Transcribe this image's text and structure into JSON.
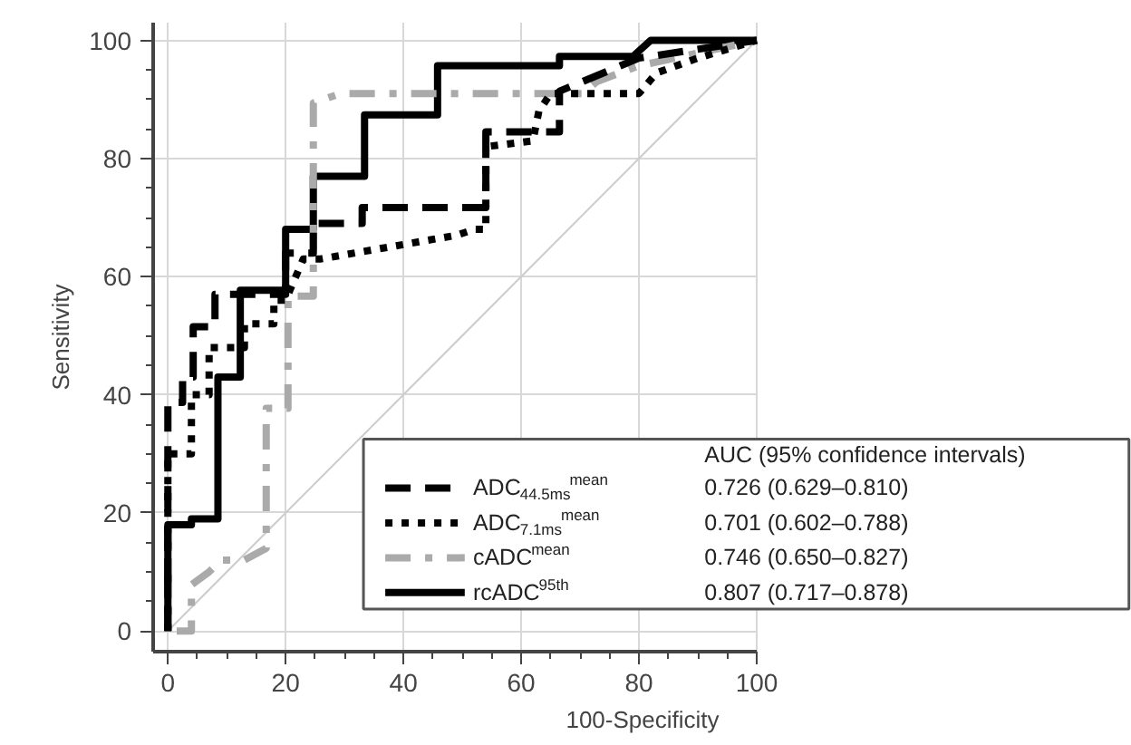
{
  "chart_data": {
    "type": "line",
    "xlabel": "100-Specificity",
    "ylabel": "Sensitivity",
    "xlim": [
      -2.5,
      100
    ],
    "ylim": [
      -3.5,
      103
    ],
    "xticks": [
      0,
      20,
      40,
      60,
      80,
      100
    ],
    "yticks": [
      0,
      20,
      40,
      60,
      80,
      100
    ],
    "grid": true,
    "legend": "bottom right",
    "annotations": [
      "AUC (95% confidence intervals)",
      "0.726 (0.629–0.810)",
      "0.701 (0.602–0.788)",
      "0.746 (0.650–0.827)",
      "0.807 (0.717–0.878)"
    ],
    "series": [
      {
        "name": "ADC$_{44.5ms}$$^{mean}$",
        "color": "#000000",
        "line_style": "dashed",
        "x": [
          0,
          0,
          2.5,
          2.5,
          4.3,
          4.3,
          8,
          8,
          20,
          20,
          24.7,
          24.7,
          33,
          33,
          54,
          54,
          66.5,
          66.5,
          80,
          100
        ],
        "values": [
          0,
          38.7,
          38.7,
          43,
          43,
          51.5,
          51.5,
          57,
          57,
          64,
          64,
          69,
          69,
          71.7,
          71.7,
          84.5,
          84.5,
          91.4,
          97,
          100
        ]
      },
      {
        "name": "ADC$_{7.1ms}$$^{mean}$",
        "color": "#000000",
        "line_style": "dotted",
        "x": [
          0,
          0,
          4,
          4,
          7,
          7,
          13,
          13,
          18,
          18,
          20,
          23,
          26,
          49,
          52,
          54,
          54,
          62,
          63,
          65,
          80,
          83,
          90,
          100
        ],
        "values": [
          0,
          30,
          30,
          40,
          40,
          48,
          48,
          52,
          52,
          56,
          56,
          63,
          63,
          67,
          68,
          68,
          82,
          83,
          88,
          91,
          91,
          94.5,
          97,
          100
        ]
      },
      {
        "name": "cADC$^{mean}$",
        "color": "#aaaaaa",
        "line_style": "dashdot",
        "x": [
          1.5,
          4,
          4,
          7,
          9,
          13,
          16.7,
          16.7,
          20.4,
          20.4,
          24.7,
          24.7,
          29.3,
          70.6,
          72.8,
          80,
          100
        ],
        "values": [
          0,
          0,
          7.8,
          10,
          12,
          12,
          14,
          37.7,
          37.7,
          56.7,
          56.7,
          89.4,
          91,
          91,
          93,
          95.7,
          100
        ]
      },
      {
        "name": "rcADC$^{95th}$",
        "color": "#000000",
        "line_style": "solid",
        "x": [
          0,
          0,
          4,
          4,
          8.5,
          8.5,
          12.3,
          12.3,
          20,
          20,
          24.7,
          24.7,
          33.4,
          33.4,
          45.8,
          45.8,
          66.5,
          66.5,
          79,
          82,
          100
        ],
        "values": [
          0,
          18,
          18,
          19,
          19,
          43,
          43,
          57.7,
          57.7,
          68,
          68,
          77,
          77,
          87.4,
          87.4,
          95.7,
          95.7,
          97.3,
          97.3,
          100,
          100
        ]
      },
      {
        "color": "#cccccc",
        "line_style": "solid",
        "x": [
          0,
          100
        ],
        "values": [
          0,
          100
        ]
      }
    ]
  }
}
